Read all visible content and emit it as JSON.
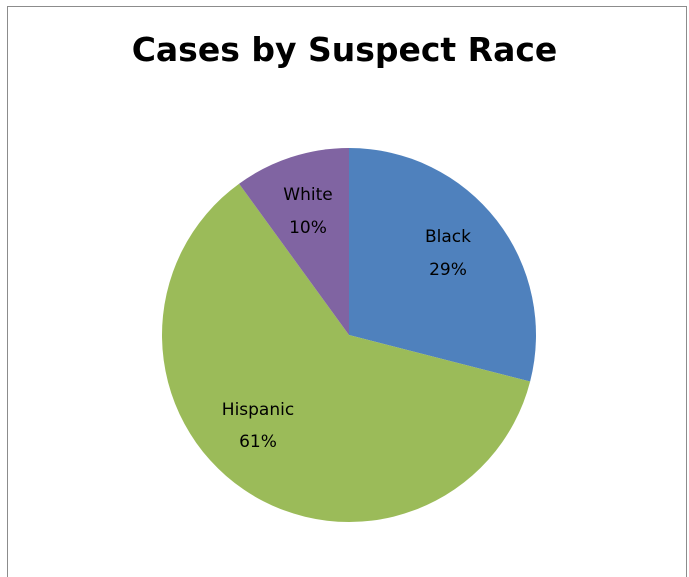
{
  "chart_data": {
    "type": "pie",
    "title": "Cases by Suspect Race",
    "start_angle_deg": 0,
    "direction": "clockwise",
    "slices": [
      {
        "label": "Black",
        "value": 29,
        "percent_label": "29%",
        "color": "#4f81bd"
      },
      {
        "label": "Hispanic",
        "value": 61,
        "percent_label": "61%",
        "color": "#9bbb59"
      },
      {
        "label": "White",
        "value": 10,
        "percent_label": "10%",
        "color": "#8064a2"
      }
    ],
    "legend": "none"
  }
}
